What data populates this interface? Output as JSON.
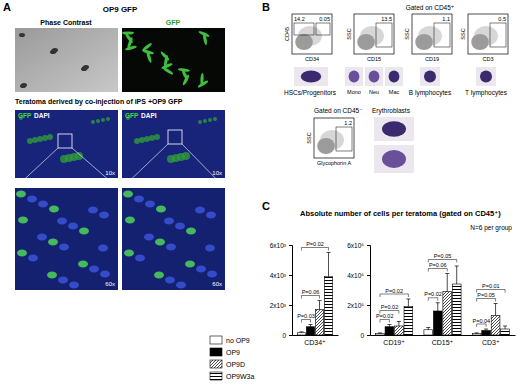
{
  "figure": {
    "panel_a": {
      "label": "A",
      "title": "OP9 GFP",
      "image_labels": [
        "Phase Contrast",
        "GFP"
      ],
      "caption": "Teratoma derived by co-injection of iPS +OP9 GFP",
      "stain_labels": [
        "GFP",
        "DAPI"
      ],
      "magnifications": [
        "10x",
        "10x",
        "60x",
        "60x"
      ]
    },
    "panel_b": {
      "label": "B",
      "gate_pos": "Gated on CD45⁺",
      "gate_neg": "Gated on CD45⁻",
      "plots": [
        {
          "x_label": "CD34",
          "y_label": "CD45",
          "gates": [
            "14.2",
            "0.05"
          ],
          "cells": [
            "HSCs/Progenitors"
          ]
        },
        {
          "x_label": "CD15",
          "y_label": "SSC",
          "gates": [
            "13.5"
          ],
          "cells": [
            "Mono",
            "Neu",
            "Mac"
          ]
        },
        {
          "x_label": "CD19",
          "y_label": "SSC",
          "gates": [
            "1.1"
          ],
          "cells": [
            "B lymphocytes"
          ]
        },
        {
          "x_label": "CD3",
          "y_label": "SSC",
          "gates": [
            "0.5"
          ],
          "cells": [
            "T lymphocytes"
          ]
        },
        {
          "x_label": "Glycophorin A",
          "y_label": "SSC",
          "gates": [
            "1.2"
          ],
          "cells": [
            "Erythroblasts"
          ]
        }
      ]
    },
    "panel_c": {
      "label": "C",
      "title": "Absolute number of cells per teratoma (gated on CD45⁺)",
      "note": "N=6 per group"
    }
  },
  "chart_data": [
    {
      "type": "bar",
      "categories": [
        "CD34⁺"
      ],
      "ylim": [
        0,
        6000
      ],
      "yticks": [
        0,
        {
          "value": 2000,
          "label": "2x10³"
        },
        {
          "value": 4000,
          "label": "4x10³"
        },
        {
          "value": 6000,
          "label": "6x10³"
        }
      ],
      "legend": "left",
      "series": [
        {
          "name": "no OP9",
          "color": "#ffffff",
          "values": [
            150
          ],
          "errors": [
            60
          ]
        },
        {
          "name": "OP9",
          "color": "#000000",
          "values": [
            550
          ],
          "errors": [
            150
          ]
        },
        {
          "name": "OP9D",
          "color": "#000000",
          "values": [
            1700
          ],
          "errors": [
            600
          ]
        },
        {
          "name": "OP9W3a",
          "color": "#000000",
          "values": [
            3900
          ],
          "errors": [
            1600
          ]
        }
      ],
      "annotations": [
        {
          "text": "P=0.03",
          "category": 0,
          "pair": [
            0,
            1
          ]
        },
        {
          "text": "P=0.06",
          "category": 0,
          "pair": [
            0,
            2
          ]
        },
        {
          "text": "P=0.02",
          "category": 0,
          "pair": [
            0,
            3
          ]
        }
      ]
    },
    {
      "type": "bar",
      "categories": [
        "CD19⁺",
        "CD15⁺",
        "CD3⁺"
      ],
      "ylim": [
        0,
        600000
      ],
      "yticks": [
        0,
        {
          "value": 200000,
          "label": "2x10⁵"
        },
        {
          "value": 400000,
          "label": "4x10⁵"
        },
        {
          "value": 600000,
          "label": "6x10⁵"
        }
      ],
      "series": [
        {
          "color": "#ffffff",
          "values": [
            10000,
            35000,
            10000
          ],
          "errors": [
            4000,
            15000,
            4000
          ]
        },
        {
          "color": "#000000",
          "values": [
            55000,
            160000,
            30000
          ],
          "errors": [
            15000,
            55000,
            10000
          ]
        },
        {
          "color": "#000000",
          "values": [
            60000,
            290000,
            130000
          ],
          "errors": [
            30000,
            120000,
            80000
          ]
        },
        {
          "color": "#000000",
          "values": [
            190000,
            340000,
            40000
          ],
          "errors": [
            50000,
            120000,
            20000
          ]
        }
      ],
      "annotations": [
        {
          "text": "P=0.02",
          "category": 0,
          "pair": [
            0,
            1
          ]
        },
        {
          "text": "P=0.02",
          "category": 0,
          "pair": [
            0,
            2
          ]
        },
        {
          "text": "P=0.02",
          "category": 0,
          "pair": [
            0,
            3
          ]
        },
        {
          "text": "P=0.02",
          "category": 1,
          "pair": [
            0,
            1
          ]
        },
        {
          "text": "P=0.06",
          "category": 1,
          "pair": [
            0,
            2
          ]
        },
        {
          "text": "P=0.05",
          "category": 1,
          "pair": [
            0,
            3
          ]
        },
        {
          "text": "P=0.04",
          "category": 2,
          "pair": [
            0,
            1
          ]
        },
        {
          "text": "P=0.05",
          "category": 2,
          "pair": [
            0,
            2
          ]
        },
        {
          "text": "P=0.01",
          "category": 2,
          "pair": [
            0,
            3
          ]
        }
      ]
    }
  ]
}
